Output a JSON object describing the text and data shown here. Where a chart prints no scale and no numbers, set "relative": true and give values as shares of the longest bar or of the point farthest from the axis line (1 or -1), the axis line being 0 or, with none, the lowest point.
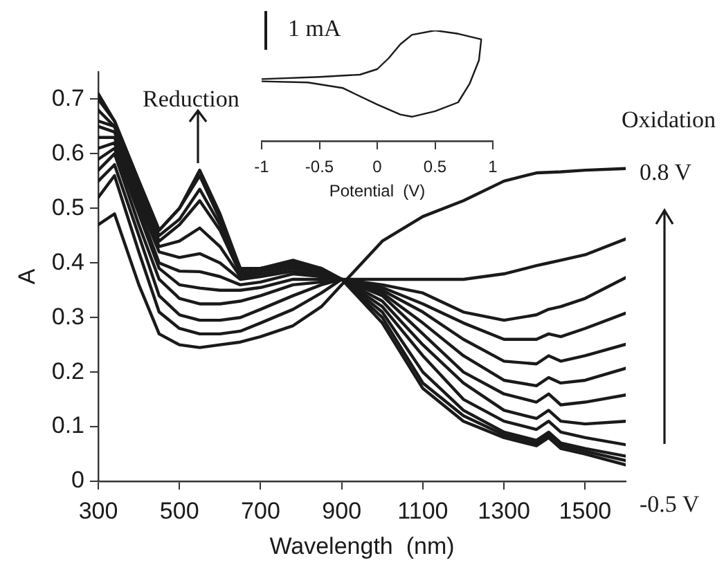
{
  "chart_data": [
    {
      "type": "line",
      "xlabel": "Wavelength  (nm)",
      "ylabel": "A",
      "xlim": [
        300,
        1600
      ],
      "xticks": [
        300,
        500,
        700,
        900,
        1100,
        1300,
        1500
      ],
      "ylim": [
        0,
        0.75
      ],
      "yticks": [
        0,
        0.1,
        0.2,
        0.3,
        0.4,
        0.5,
        0.6,
        0.7
      ],
      "grid": false,
      "legend": false,
      "marker": "none",
      "line_style": "solid",
      "annotations": [
        "Reduction",
        "Oxidation",
        "0.8 V",
        "-0.5 V"
      ],
      "x": [
        300,
        340,
        400,
        450,
        500,
        550,
        600,
        650,
        700,
        780,
        850,
        900,
        1000,
        1100,
        1200,
        1300,
        1380,
        1410,
        1440,
        1500,
        1600
      ],
      "series": [
        {
          "color": "#1a1a1a",
          "values": [
            0.71,
            0.66,
            0.55,
            0.46,
            0.5,
            0.57,
            0.49,
            0.39,
            0.39,
            0.405,
            0.39,
            0.37,
            0.29,
            0.17,
            0.11,
            0.08,
            0.065,
            0.08,
            0.06,
            0.05,
            0.03
          ]
        },
        {
          "color": "#1a1a1a",
          "values": [
            0.7,
            0.66,
            0.55,
            0.46,
            0.5,
            0.56,
            0.48,
            0.39,
            0.39,
            0.4,
            0.39,
            0.37,
            0.3,
            0.18,
            0.12,
            0.085,
            0.07,
            0.085,
            0.065,
            0.055,
            0.038
          ]
        },
        {
          "color": "#1a1a1a",
          "values": [
            0.68,
            0.65,
            0.54,
            0.45,
            0.48,
            0.535,
            0.47,
            0.385,
            0.39,
            0.4,
            0.385,
            0.37,
            0.31,
            0.2,
            0.13,
            0.09,
            0.075,
            0.09,
            0.07,
            0.06,
            0.046
          ]
        },
        {
          "color": "#1a1a1a",
          "values": [
            0.66,
            0.65,
            0.53,
            0.44,
            0.47,
            0.514,
            0.46,
            0.38,
            0.385,
            0.395,
            0.38,
            0.37,
            0.32,
            0.23,
            0.15,
            0.11,
            0.095,
            0.11,
            0.09,
            0.08,
            0.067
          ]
        },
        {
          "color": "#1a1a1a",
          "values": [
            0.65,
            0.64,
            0.52,
            0.43,
            0.44,
            0.464,
            0.43,
            0.375,
            0.38,
            0.39,
            0.38,
            0.37,
            0.33,
            0.25,
            0.18,
            0.13,
            0.115,
            0.13,
            0.11,
            0.105,
            0.11
          ]
        },
        {
          "color": "#1a1a1a",
          "values": [
            0.63,
            0.63,
            0.51,
            0.42,
            0.41,
            0.417,
            0.4,
            0.37,
            0.375,
            0.385,
            0.375,
            0.37,
            0.34,
            0.27,
            0.2,
            0.16,
            0.145,
            0.16,
            0.14,
            0.145,
            0.158
          ]
        },
        {
          "color": "#1a1a1a",
          "values": [
            0.61,
            0.62,
            0.5,
            0.4,
            0.385,
            0.384,
            0.375,
            0.36,
            0.365,
            0.38,
            0.375,
            0.37,
            0.345,
            0.29,
            0.23,
            0.185,
            0.175,
            0.19,
            0.18,
            0.185,
            0.207
          ]
        },
        {
          "color": "#1a1a1a",
          "values": [
            0.59,
            0.61,
            0.49,
            0.39,
            0.36,
            0.354,
            0.35,
            0.35,
            0.355,
            0.37,
            0.37,
            0.37,
            0.35,
            0.31,
            0.26,
            0.22,
            0.215,
            0.23,
            0.22,
            0.23,
            0.251
          ]
        },
        {
          "color": "#1a1a1a",
          "values": [
            0.57,
            0.6,
            0.47,
            0.37,
            0.335,
            0.325,
            0.325,
            0.33,
            0.34,
            0.36,
            0.365,
            0.37,
            0.355,
            0.325,
            0.29,
            0.26,
            0.26,
            0.27,
            0.265,
            0.28,
            0.308
          ]
        },
        {
          "color": "#1a1a1a",
          "values": [
            0.55,
            0.58,
            0.45,
            0.34,
            0.305,
            0.295,
            0.295,
            0.3,
            0.315,
            0.34,
            0.36,
            0.37,
            0.36,
            0.345,
            0.31,
            0.295,
            0.305,
            0.315,
            0.32,
            0.335,
            0.373
          ]
        },
        {
          "color": "#1a1a1a",
          "values": [
            0.52,
            0.56,
            0.42,
            0.31,
            0.28,
            0.27,
            0.27,
            0.275,
            0.29,
            0.315,
            0.345,
            0.37,
            0.37,
            0.37,
            0.37,
            0.38,
            0.395,
            0.4,
            0.405,
            0.415,
            0.444
          ]
        },
        {
          "color": "#1a1a1a",
          "values": [
            0.47,
            0.49,
            0.36,
            0.27,
            0.25,
            0.245,
            0.25,
            0.255,
            0.265,
            0.285,
            0.32,
            0.36,
            0.44,
            0.485,
            0.514,
            0.55,
            0.565,
            0.566,
            0.567,
            0.57,
            0.573
          ]
        }
      ]
    },
    {
      "type": "line",
      "xlabel": "Potential  (V)",
      "relative": true,
      "xlim": [
        -1,
        1
      ],
      "xticks": [
        -1,
        -0.5,
        0,
        0.5,
        1
      ],
      "tick_labels": "x",
      "grid": false,
      "legend": false,
      "marker": "none",
      "line_style": "solid",
      "annotations": [
        "1 mA"
      ],
      "series": [
        {
          "color": "#1a1a1a",
          "x": [
            -1,
            -0.5,
            -0.15,
            0,
            0.1,
            0.2,
            0.3,
            0.5,
            0.7,
            0.9,
            0.88,
            0.8,
            0.7,
            0.5,
            0.3,
            0.2,
            0,
            -0.3,
            -0.6,
            -1
          ],
          "values": [
            0.56,
            0.58,
            0.6,
            0.65,
            0.75,
            0.875,
            0.96,
            1,
            0.97,
            0.92,
            0.73,
            0.52,
            0.35,
            0.27,
            0.22,
            0.24,
            0.33,
            0.48,
            0.53,
            0.54
          ]
        }
      ]
    }
  ]
}
